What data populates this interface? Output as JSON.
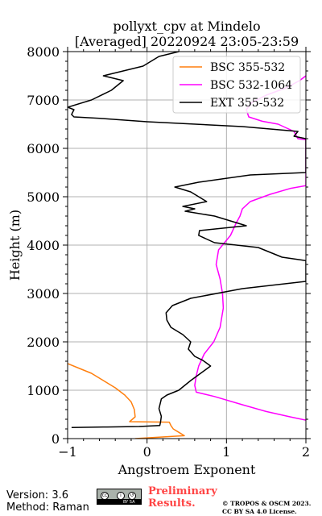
{
  "chart_data": {
    "type": "line",
    "title_line1": "pollyxt_cpv at Mindelo",
    "title_line2": "[Averaged] 20220924 23:05-23:59",
    "xlabel": "Angstroem Exponent",
    "ylabel": "Height (m)",
    "xlim": [
      -1,
      2
    ],
    "ylim": [
      0,
      8000
    ],
    "x_ticks": [
      -1,
      0,
      1,
      2
    ],
    "y_ticks": [
      0,
      1000,
      2000,
      3000,
      4000,
      5000,
      6000,
      7000,
      8000
    ],
    "x_tick_labels": [
      "−1",
      "0",
      "1",
      "2"
    ],
    "y_tick_labels": [
      "0",
      "1000",
      "2000",
      "3000",
      "4000",
      "5000",
      "6000",
      "7000",
      "8000"
    ],
    "grid": true,
    "legend_position": "top-right",
    "series": [
      {
        "name": "BSC 355-532",
        "color": "#ff7f0e",
        "points": [
          [
            -0.15,
            0
          ],
          [
            0.47,
            60
          ],
          [
            0.4,
            130
          ],
          [
            0.33,
            200
          ],
          [
            0.3,
            270
          ],
          [
            0.28,
            340
          ],
          [
            -0.22,
            350
          ],
          [
            -0.15,
            450
          ],
          [
            -0.16,
            600
          ],
          [
            -0.2,
            760
          ],
          [
            -0.28,
            900
          ],
          [
            -0.4,
            1050
          ],
          [
            -0.55,
            1200
          ],
          [
            -0.7,
            1350
          ],
          [
            -0.85,
            1450
          ],
          [
            -1.0,
            1550
          ]
        ]
      },
      {
        "name": "BSC 532-1064",
        "color": "#ff00ff",
        "points": [
          [
            2.0,
            380
          ],
          [
            1.8,
            450
          ],
          [
            1.5,
            560
          ],
          [
            1.2,
            700
          ],
          [
            0.85,
            870
          ],
          [
            0.62,
            960
          ],
          [
            0.6,
            1100
          ],
          [
            0.62,
            1300
          ],
          [
            0.65,
            1500
          ],
          [
            0.72,
            1750
          ],
          [
            0.84,
            2000
          ],
          [
            0.92,
            2300
          ],
          [
            0.96,
            2700
          ],
          [
            0.95,
            3000
          ],
          [
            0.92,
            3300
          ],
          [
            0.87,
            3600
          ],
          [
            0.9,
            3900
          ],
          [
            1.05,
            4200
          ],
          [
            1.12,
            4450
          ],
          [
            1.17,
            4600
          ],
          [
            1.2,
            4750
          ],
          [
            1.3,
            4900
          ],
          [
            1.55,
            5050
          ],
          [
            1.8,
            5170
          ],
          [
            2.0,
            5230
          ],
          [
            2.0,
            6180
          ],
          [
            1.9,
            6200
          ],
          [
            1.85,
            6350
          ],
          [
            1.65,
            6500
          ],
          [
            1.45,
            6560
          ],
          [
            1.28,
            6650
          ],
          [
            1.25,
            6800
          ],
          [
            1.32,
            6950
          ],
          [
            1.5,
            7100
          ],
          [
            1.75,
            7250
          ],
          [
            1.92,
            7400
          ],
          [
            2.0,
            7500
          ]
        ]
      },
      {
        "name": "EXT 355-532",
        "color": "#000000",
        "points": [
          [
            -0.95,
            230
          ],
          [
            -0.5,
            240
          ],
          [
            -0.1,
            250
          ],
          [
            0.16,
            270
          ],
          [
            0.17,
            340
          ],
          [
            0.18,
            460
          ],
          [
            0.15,
            620
          ],
          [
            0.18,
            820
          ],
          [
            0.25,
            900
          ],
          [
            0.4,
            1000
          ],
          [
            0.55,
            1200
          ],
          [
            0.8,
            1500
          ],
          [
            0.7,
            1620
          ],
          [
            0.6,
            1700
          ],
          [
            0.52,
            1850
          ],
          [
            0.55,
            2000
          ],
          [
            0.45,
            2150
          ],
          [
            0.3,
            2300
          ],
          [
            0.25,
            2450
          ],
          [
            0.24,
            2600
          ],
          [
            0.32,
            2750
          ],
          [
            0.55,
            2900
          ],
          [
            1.2,
            3100
          ],
          [
            2.0,
            3250
          ],
          [
            2.0,
            3680
          ],
          [
            1.7,
            3750
          ],
          [
            1.4,
            3950
          ],
          [
            0.85,
            4050
          ],
          [
            0.65,
            4200
          ],
          [
            0.66,
            4300
          ],
          [
            1.25,
            4400
          ],
          [
            0.85,
            4600
          ],
          [
            0.48,
            4700
          ],
          [
            0.6,
            4750
          ],
          [
            0.45,
            4800
          ],
          [
            0.75,
            4900
          ],
          [
            0.55,
            5100
          ],
          [
            0.35,
            5200
          ],
          [
            0.65,
            5300
          ],
          [
            1.3,
            5450
          ],
          [
            2.0,
            5500
          ],
          [
            2.0,
            6200
          ],
          [
            1.85,
            6250
          ],
          [
            1.9,
            6350
          ],
          [
            1.2,
            6450
          ],
          [
            0.0,
            6550
          ],
          [
            -0.6,
            6620
          ],
          [
            -0.92,
            6650
          ],
          [
            -0.95,
            6700
          ],
          [
            -0.92,
            6800
          ],
          [
            -1.0,
            6850
          ],
          [
            -0.7,
            7000
          ],
          [
            -0.45,
            7200
          ],
          [
            -0.3,
            7400
          ],
          [
            -0.55,
            7500
          ],
          [
            -0.05,
            7700
          ],
          [
            0.15,
            7900
          ],
          [
            0.4,
            8000
          ]
        ]
      }
    ]
  },
  "footer": {
    "version": "Version: 3.6",
    "method": "Method: Raman",
    "preliminary_line1": "Preliminary",
    "preliminary_line2": "Results.",
    "copyright_line1": "© TROPOS & OSCM 2023.",
    "copyright_line2": "CC BY SA 4.0 License.",
    "badge_text": "BY   SA"
  }
}
